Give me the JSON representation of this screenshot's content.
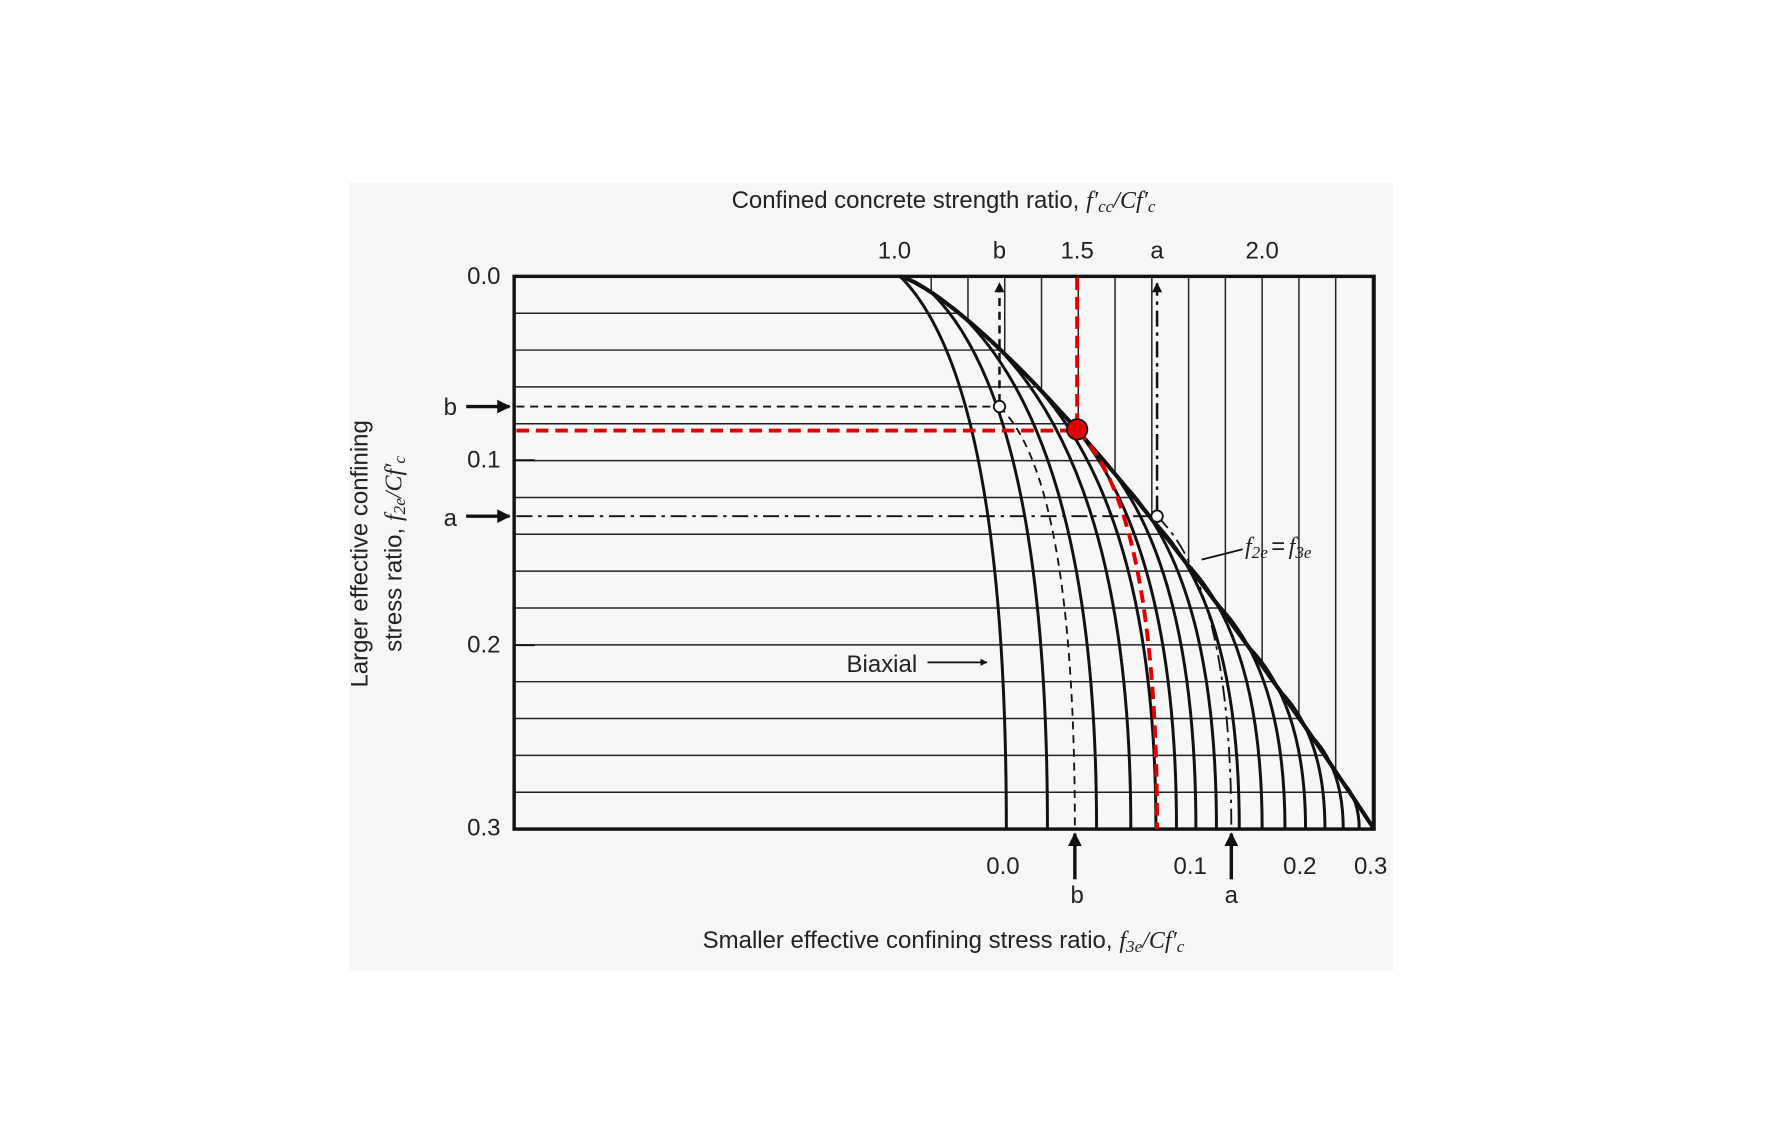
{
  "top_axis": {
    "title": "Confined concrete strength ratio,",
    "symbol": [
      "f′",
      "cc",
      "/Cf′",
      "c"
    ],
    "ticks": [
      "1.0",
      "b",
      "1.5",
      "a",
      "2.0"
    ]
  },
  "left_axis": {
    "title_line1": "Larger effective confining",
    "title_line2": "stress ratio,",
    "symbol": [
      "f",
      "2e",
      "/Cf′",
      "c"
    ],
    "ticks": [
      "0.0",
      "b",
      "0.1",
      "a",
      "0.2",
      "0.3"
    ]
  },
  "bottom_axis": {
    "title": "Smaller effective confining stress ratio,",
    "symbol": [
      "f",
      "3e",
      "/Cf′",
      "c"
    ],
    "ticks": [
      "0.0",
      "b",
      "0.1",
      "a",
      "0.2",
      "0.3"
    ]
  },
  "annotations": {
    "biaxial": "Biaxial",
    "equal": [
      "f",
      "2e",
      "=",
      "f",
      "3e"
    ]
  }
}
